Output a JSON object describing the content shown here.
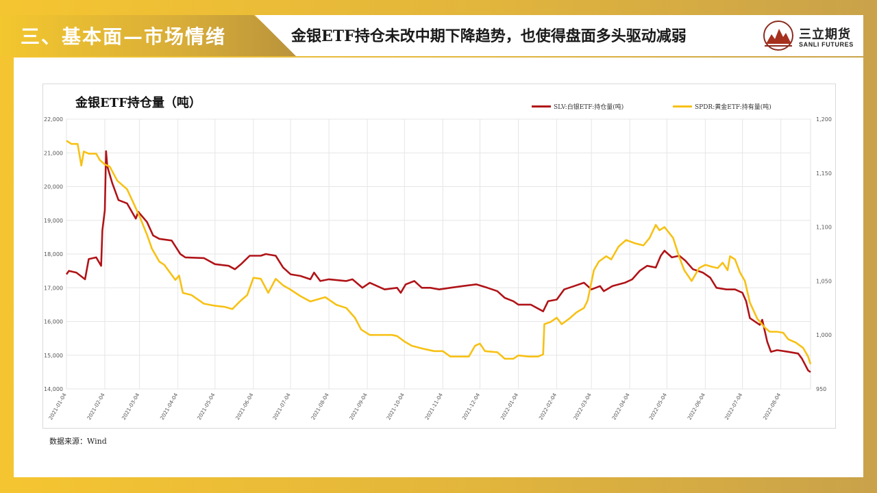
{
  "header": {
    "section_title": "三、基本面—市场情绪",
    "headline": "金银ETF持仓未改中期下降趋势，也使得盘面多头驱动减弱",
    "brand_cn": "三立期货",
    "brand_en": "SANLI FUTURES",
    "logo_icon": "mountain-logo-icon"
  },
  "colors": {
    "frame": "#f5c531",
    "slv": "#b01317",
    "spdr": "#f7c114"
  },
  "source": "数据来源：Wind",
  "chart_data": {
    "type": "line",
    "title": "金银ETF持仓量（吨）",
    "x_ticks": [
      "2021-01-04",
      "2021-02-04",
      "2021-03-04",
      "2021-04-04",
      "2021-05-04",
      "2021-06-04",
      "2021-07-04",
      "2021-08-04",
      "2021-09-04",
      "2021-10-04",
      "2021-11-04",
      "2021-12-04",
      "2022-01-04",
      "2022-02-04",
      "2022-03-04",
      "2022-04-04",
      "2022-05-04",
      "2022-06-04",
      "2022-07-04",
      "2022-08-04"
    ],
    "x_range": [
      "2021-01-04",
      "2022-08-28"
    ],
    "y_left": {
      "range": [
        14000,
        22000
      ],
      "ticks": [
        "14,000",
        "15,000",
        "16,000",
        "17,000",
        "18,000",
        "19,000",
        "20,000",
        "21,000",
        "22,000"
      ]
    },
    "y_right": {
      "range": [
        950,
        1200
      ],
      "ticks": [
        "950",
        "1,000",
        "1,050",
        "1,100",
        "1,150",
        "1,200"
      ]
    },
    "grid": true,
    "legend_position": "top-right",
    "series": [
      {
        "name": "SLV:白银ETF:持仓量(吨)",
        "axis": "left",
        "color": "#b01317",
        "points": [
          [
            "2021-01-04",
            17400
          ],
          [
            "2021-01-06",
            17500
          ],
          [
            "2021-01-12",
            17450
          ],
          [
            "2021-01-19",
            17250
          ],
          [
            "2021-01-22",
            17850
          ],
          [
            "2021-01-28",
            17900
          ],
          [
            "2021-02-01",
            17650
          ],
          [
            "2021-02-02",
            18700
          ],
          [
            "2021-02-04",
            19300
          ],
          [
            "2021-02-05",
            21050
          ],
          [
            "2021-02-06",
            20600
          ],
          [
            "2021-02-10",
            20100
          ],
          [
            "2021-02-15",
            19600
          ],
          [
            "2021-02-22",
            19500
          ],
          [
            "2021-03-01",
            19050
          ],
          [
            "2021-03-03",
            19250
          ],
          [
            "2021-03-10",
            18950
          ],
          [
            "2021-03-15",
            18550
          ],
          [
            "2021-03-20",
            18450
          ],
          [
            "2021-03-30",
            18400
          ],
          [
            "2021-04-06",
            18000
          ],
          [
            "2021-04-10",
            17900
          ],
          [
            "2021-04-25",
            17880
          ],
          [
            "2021-05-04",
            17700
          ],
          [
            "2021-05-15",
            17650
          ],
          [
            "2021-05-20",
            17550
          ],
          [
            "2021-05-25",
            17700
          ],
          [
            "2021-06-01",
            17950
          ],
          [
            "2021-06-10",
            17950
          ],
          [
            "2021-06-14",
            18000
          ],
          [
            "2021-06-22",
            17950
          ],
          [
            "2021-06-28",
            17600
          ],
          [
            "2021-07-04",
            17400
          ],
          [
            "2021-07-12",
            17350
          ],
          [
            "2021-07-20",
            17250
          ],
          [
            "2021-07-23",
            17450
          ],
          [
            "2021-07-28",
            17200
          ],
          [
            "2021-08-04",
            17250
          ],
          [
            "2021-08-18",
            17200
          ],
          [
            "2021-08-23",
            17250
          ],
          [
            "2021-08-31",
            17000
          ],
          [
            "2021-09-06",
            17150
          ],
          [
            "2021-09-18",
            16950
          ],
          [
            "2021-09-28",
            17000
          ],
          [
            "2021-10-01",
            16850
          ],
          [
            "2021-10-05",
            17100
          ],
          [
            "2021-10-12",
            17200
          ],
          [
            "2021-10-18",
            17000
          ],
          [
            "2021-10-25",
            17000
          ],
          [
            "2021-11-01",
            16950
          ],
          [
            "2021-11-10",
            17000
          ],
          [
            "2021-11-20",
            17050
          ],
          [
            "2021-12-01",
            17100
          ],
          [
            "2021-12-10",
            17000
          ],
          [
            "2021-12-18",
            16900
          ],
          [
            "2021-12-24",
            16700
          ],
          [
            "2021-12-31",
            16600
          ],
          [
            "2022-01-04",
            16500
          ],
          [
            "2022-01-14",
            16500
          ],
          [
            "2022-01-24",
            16300
          ],
          [
            "2022-01-28",
            16600
          ],
          [
            "2022-02-04",
            16650
          ],
          [
            "2022-02-10",
            16950
          ],
          [
            "2022-02-18",
            17050
          ],
          [
            "2022-02-26",
            17150
          ],
          [
            "2022-03-04",
            16950
          ],
          [
            "2022-03-11",
            17050
          ],
          [
            "2022-03-14",
            16900
          ],
          [
            "2022-03-21",
            17050
          ],
          [
            "2022-03-31",
            17150
          ],
          [
            "2022-04-06",
            17250
          ],
          [
            "2022-04-12",
            17500
          ],
          [
            "2022-04-18",
            17650
          ],
          [
            "2022-04-25",
            17600
          ],
          [
            "2022-04-29",
            17950
          ],
          [
            "2022-05-02",
            18100
          ],
          [
            "2022-05-08",
            17900
          ],
          [
            "2022-05-14",
            17950
          ],
          [
            "2022-05-19",
            17800
          ],
          [
            "2022-05-25",
            17550
          ],
          [
            "2022-06-02",
            17450
          ],
          [
            "2022-06-08",
            17300
          ],
          [
            "2022-06-13",
            17000
          ],
          [
            "2022-06-21",
            16950
          ],
          [
            "2022-06-28",
            16950
          ],
          [
            "2022-07-04",
            16850
          ],
          [
            "2022-07-07",
            16600
          ],
          [
            "2022-07-10",
            16100
          ],
          [
            "2022-07-18",
            15900
          ],
          [
            "2022-07-20",
            16050
          ],
          [
            "2022-07-24",
            15400
          ],
          [
            "2022-07-27",
            15100
          ],
          [
            "2022-08-01",
            15150
          ],
          [
            "2022-08-10",
            15100
          ],
          [
            "2022-08-18",
            15050
          ],
          [
            "2022-08-21",
            14900
          ],
          [
            "2022-08-26",
            14550
          ],
          [
            "2022-08-28",
            14500
          ]
        ]
      },
      {
        "name": "SPDR:黄金ETF:持有量(吨)",
        "axis": "right",
        "color": "#f7c114",
        "points": [
          [
            "2021-01-04",
            1180
          ],
          [
            "2021-01-08",
            1177
          ],
          [
            "2021-01-13",
            1177
          ],
          [
            "2021-01-16",
            1157
          ],
          [
            "2021-01-18",
            1170
          ],
          [
            "2021-01-22",
            1168
          ],
          [
            "2021-01-28",
            1168
          ],
          [
            "2021-01-31",
            1162
          ],
          [
            "2021-02-04",
            1158
          ],
          [
            "2021-02-08",
            1156
          ],
          [
            "2021-02-14",
            1143
          ],
          [
            "2021-02-22",
            1135
          ],
          [
            "2021-02-28",
            1120
          ],
          [
            "2021-03-04",
            1110
          ],
          [
            "2021-03-10",
            1093
          ],
          [
            "2021-03-14",
            1080
          ],
          [
            "2021-03-20",
            1068
          ],
          [
            "2021-03-24",
            1065
          ],
          [
            "2021-04-02",
            1051
          ],
          [
            "2021-04-05",
            1055
          ],
          [
            "2021-04-08",
            1039
          ],
          [
            "2021-04-15",
            1037
          ],
          [
            "2021-04-20",
            1033
          ],
          [
            "2021-04-25",
            1029
          ],
          [
            "2021-05-04",
            1027
          ],
          [
            "2021-05-12",
            1026
          ],
          [
            "2021-05-18",
            1024
          ],
          [
            "2021-05-24",
            1031
          ],
          [
            "2021-05-30",
            1037
          ],
          [
            "2021-06-04",
            1053
          ],
          [
            "2021-06-10",
            1052
          ],
          [
            "2021-06-16",
            1039
          ],
          [
            "2021-06-22",
            1052
          ],
          [
            "2021-06-28",
            1046
          ],
          [
            "2021-07-04",
            1042
          ],
          [
            "2021-07-12",
            1036
          ],
          [
            "2021-07-20",
            1031
          ],
          [
            "2021-08-01",
            1035
          ],
          [
            "2021-08-10",
            1028
          ],
          [
            "2021-08-18",
            1025
          ],
          [
            "2021-08-25",
            1016
          ],
          [
            "2021-08-30",
            1005
          ],
          [
            "2021-09-06",
            1000
          ],
          [
            "2021-09-18",
            1000
          ],
          [
            "2021-09-24",
            1000
          ],
          [
            "2021-09-28",
            999
          ],
          [
            "2021-10-04",
            994
          ],
          [
            "2021-10-10",
            990
          ],
          [
            "2021-10-20",
            987
          ],
          [
            "2021-10-28",
            985
          ],
          [
            "2021-11-04",
            985
          ],
          [
            "2021-11-10",
            980
          ],
          [
            "2021-11-20",
            980
          ],
          [
            "2021-11-25",
            980
          ],
          [
            "2021-11-30",
            990
          ],
          [
            "2021-12-04",
            992
          ],
          [
            "2021-12-08",
            985
          ],
          [
            "2021-12-18",
            984
          ],
          [
            "2021-12-24",
            978
          ],
          [
            "2021-12-31",
            978
          ],
          [
            "2022-01-04",
            981
          ],
          [
            "2022-01-12",
            980
          ],
          [
            "2022-01-20",
            980
          ],
          [
            "2022-01-24",
            982
          ],
          [
            "2022-01-25",
            1010
          ],
          [
            "2022-01-30",
            1012
          ],
          [
            "2022-02-04",
            1016
          ],
          [
            "2022-02-08",
            1010
          ],
          [
            "2022-02-14",
            1015
          ],
          [
            "2022-02-20",
            1021
          ],
          [
            "2022-02-26",
            1025
          ],
          [
            "2022-03-01",
            1032
          ],
          [
            "2022-03-06",
            1060
          ],
          [
            "2022-03-10",
            1068
          ],
          [
            "2022-03-16",
            1073
          ],
          [
            "2022-03-20",
            1070
          ],
          [
            "2022-03-26",
            1082
          ],
          [
            "2022-04-01",
            1088
          ],
          [
            "2022-04-08",
            1085
          ],
          [
            "2022-04-15",
            1083
          ],
          [
            "2022-04-20",
            1090
          ],
          [
            "2022-04-25",
            1102
          ],
          [
            "2022-04-28",
            1097
          ],
          [
            "2022-05-02",
            1100
          ],
          [
            "2022-05-09",
            1090
          ],
          [
            "2022-05-14",
            1072
          ],
          [
            "2022-05-18",
            1060
          ],
          [
            "2022-05-24",
            1050
          ],
          [
            "2022-05-30",
            1062
          ],
          [
            "2022-06-04",
            1065
          ],
          [
            "2022-06-10",
            1063
          ],
          [
            "2022-06-14",
            1062
          ],
          [
            "2022-06-18",
            1067
          ],
          [
            "2022-06-22",
            1060
          ],
          [
            "2022-06-24",
            1073
          ],
          [
            "2022-06-28",
            1070
          ],
          [
            "2022-07-02",
            1058
          ],
          [
            "2022-07-06",
            1050
          ],
          [
            "2022-07-10",
            1030
          ],
          [
            "2022-07-16",
            1015
          ],
          [
            "2022-07-22",
            1007
          ],
          [
            "2022-07-26",
            1003
          ],
          [
            "2022-08-01",
            1003
          ],
          [
            "2022-08-06",
            1002
          ],
          [
            "2022-08-10",
            996
          ],
          [
            "2022-08-16",
            993
          ],
          [
            "2022-08-22",
            988
          ],
          [
            "2022-08-26",
            980
          ],
          [
            "2022-08-28",
            973
          ]
        ]
      }
    ]
  }
}
